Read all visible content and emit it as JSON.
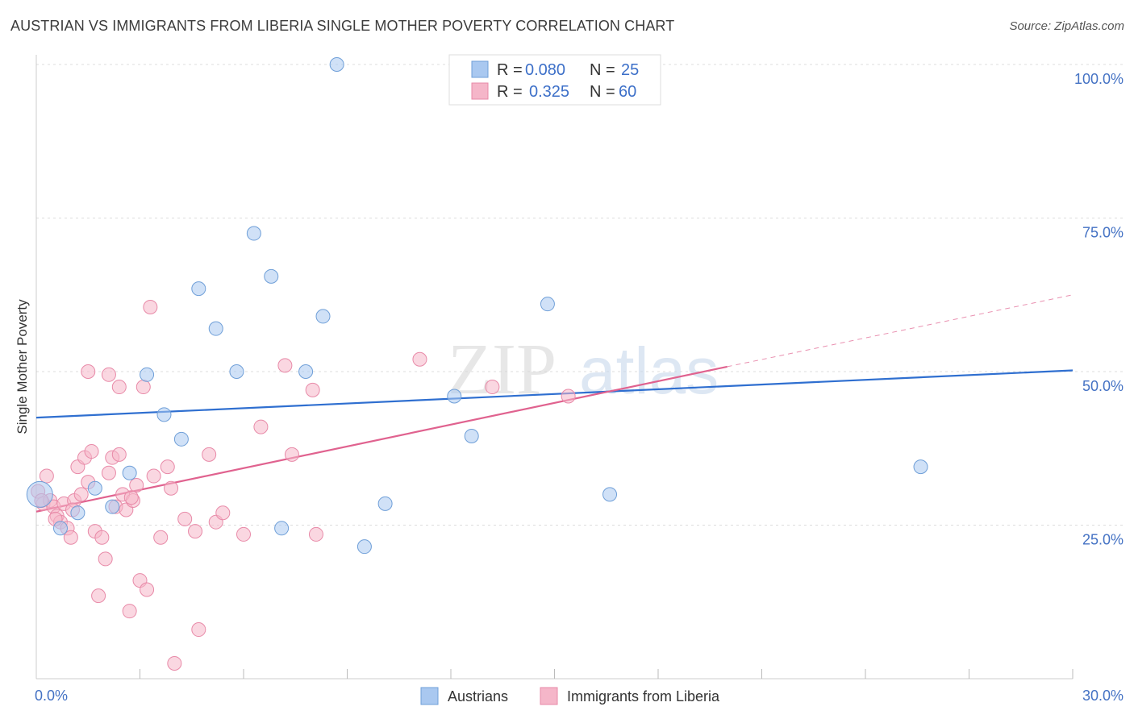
{
  "title": "AUSTRIAN VS IMMIGRANTS FROM LIBERIA SINGLE MOTHER POVERTY CORRELATION CHART",
  "source": "Source: ZipAtlas.com",
  "watermark": {
    "zip": "ZIP",
    "atlas": "atlas"
  },
  "legend": {
    "rows": [
      {
        "r_label": "R =",
        "r_value": "0.080",
        "n_label": "N =",
        "n_value": "25"
      },
      {
        "r_label": "R =",
        "r_value": "0.325",
        "n_label": "N =",
        "n_value": "60"
      }
    ]
  },
  "bottom_legend": [
    "Austrians",
    "Immigrants from Liberia"
  ],
  "colors": {
    "austrians_fill": "#a9c8f0",
    "austrians_stroke": "#6f9fd8",
    "austrians_line": "#2f6fd0",
    "liberia_fill": "#f5b6c9",
    "liberia_stroke": "#e88aa8",
    "liberia_line": "#e0628f",
    "tick_label": "#4472c4",
    "grid": "#dddddd"
  },
  "chart_data": {
    "type": "scatter",
    "title": "AUSTRIAN VS IMMIGRANTS FROM LIBERIA SINGLE MOTHER POVERTY CORRELATION CHART",
    "xlabel": "",
    "ylabel": "Single Mother Poverty",
    "xlim": [
      0,
      30
    ],
    "ylim": [
      0,
      100
    ],
    "x_tick_labels": [
      "0.0%",
      "30.0%"
    ],
    "y_tick_labels": [
      "25.0%",
      "50.0%",
      "75.0%",
      "100.0%"
    ],
    "y_ticks": [
      25,
      50,
      75,
      100
    ],
    "grid": true,
    "legend_position": "top-center",
    "series": [
      {
        "name": "Austrians",
        "r": 0.08,
        "n": 25,
        "points": [
          [
            0.1,
            30.0
          ],
          [
            0.7,
            24.5
          ],
          [
            1.2,
            27.0
          ],
          [
            1.7,
            31.0
          ],
          [
            2.2,
            28.0
          ],
          [
            2.7,
            33.5
          ],
          [
            3.2,
            49.5
          ],
          [
            3.7,
            43.0
          ],
          [
            4.2,
            39.0
          ],
          [
            4.7,
            63.5
          ],
          [
            5.2,
            57.0
          ],
          [
            5.8,
            50.0
          ],
          [
            6.3,
            72.5
          ],
          [
            6.8,
            65.5
          ],
          [
            7.1,
            24.5
          ],
          [
            7.8,
            50.0
          ],
          [
            8.3,
            59.0
          ],
          [
            8.7,
            100.0
          ],
          [
            9.5,
            21.5
          ],
          [
            10.1,
            28.5
          ],
          [
            12.1,
            46.0
          ],
          [
            12.6,
            39.5
          ],
          [
            14.8,
            61.0
          ],
          [
            16.6,
            30.0
          ],
          [
            25.6,
            34.5
          ]
        ],
        "trend": {
          "x": [
            0,
            30
          ],
          "y": [
            42.5,
            50.2
          ]
        }
      },
      {
        "name": "Immigrants from Liberia",
        "r": 0.325,
        "n": 60,
        "points": [
          [
            0.05,
            30.5
          ],
          [
            0.2,
            28.5
          ],
          [
            0.3,
            33.0
          ],
          [
            0.4,
            29.0
          ],
          [
            0.5,
            28.0
          ],
          [
            0.6,
            26.5
          ],
          [
            0.7,
            25.5
          ],
          [
            0.8,
            28.5
          ],
          [
            0.9,
            24.5
          ],
          [
            1.0,
            23.0
          ],
          [
            1.1,
            29.0
          ],
          [
            1.2,
            34.5
          ],
          [
            1.3,
            30.0
          ],
          [
            1.4,
            36.0
          ],
          [
            1.5,
            32.0
          ],
          [
            1.6,
            37.0
          ],
          [
            1.7,
            24.0
          ],
          [
            1.8,
            13.5
          ],
          [
            1.9,
            23.0
          ],
          [
            2.0,
            19.5
          ],
          [
            2.1,
            33.5
          ],
          [
            2.2,
            36.0
          ],
          [
            2.3,
            28.0
          ],
          [
            2.4,
            36.5
          ],
          [
            2.5,
            30.0
          ],
          [
            2.6,
            27.5
          ],
          [
            2.7,
            11.0
          ],
          [
            2.8,
            29.0
          ],
          [
            2.9,
            31.5
          ],
          [
            3.0,
            16.0
          ],
          [
            3.1,
            47.5
          ],
          [
            3.2,
            14.5
          ],
          [
            3.3,
            60.5
          ],
          [
            3.4,
            33.0
          ],
          [
            3.6,
            23.0
          ],
          [
            3.8,
            34.5
          ],
          [
            4.0,
            2.5
          ],
          [
            4.3,
            26.0
          ],
          [
            4.6,
            24.0
          ],
          [
            4.7,
            8.0
          ],
          [
            5.0,
            36.5
          ],
          [
            5.2,
            25.5
          ],
          [
            5.4,
            27.0
          ],
          [
            6.0,
            23.5
          ],
          [
            6.5,
            41.0
          ],
          [
            7.2,
            51.0
          ],
          [
            7.4,
            36.5
          ],
          [
            8.0,
            47.0
          ],
          [
            8.1,
            23.5
          ],
          [
            1.5,
            50.0
          ],
          [
            2.1,
            49.5
          ],
          [
            2.4,
            47.5
          ],
          [
            11.1,
            52.0
          ],
          [
            13.2,
            47.5
          ],
          [
            15.4,
            46.0
          ],
          [
            0.15,
            29.0
          ],
          [
            0.55,
            26.0
          ],
          [
            1.05,
            27.5
          ],
          [
            2.75,
            29.5
          ],
          [
            3.9,
            31.0
          ]
        ],
        "trend": {
          "x": [
            0,
            20
          ],
          "y": [
            27.2,
            50.8
          ]
        },
        "trend_dashed": {
          "x": [
            20,
            30
          ],
          "y": [
            50.8,
            62.5
          ]
        }
      }
    ]
  }
}
